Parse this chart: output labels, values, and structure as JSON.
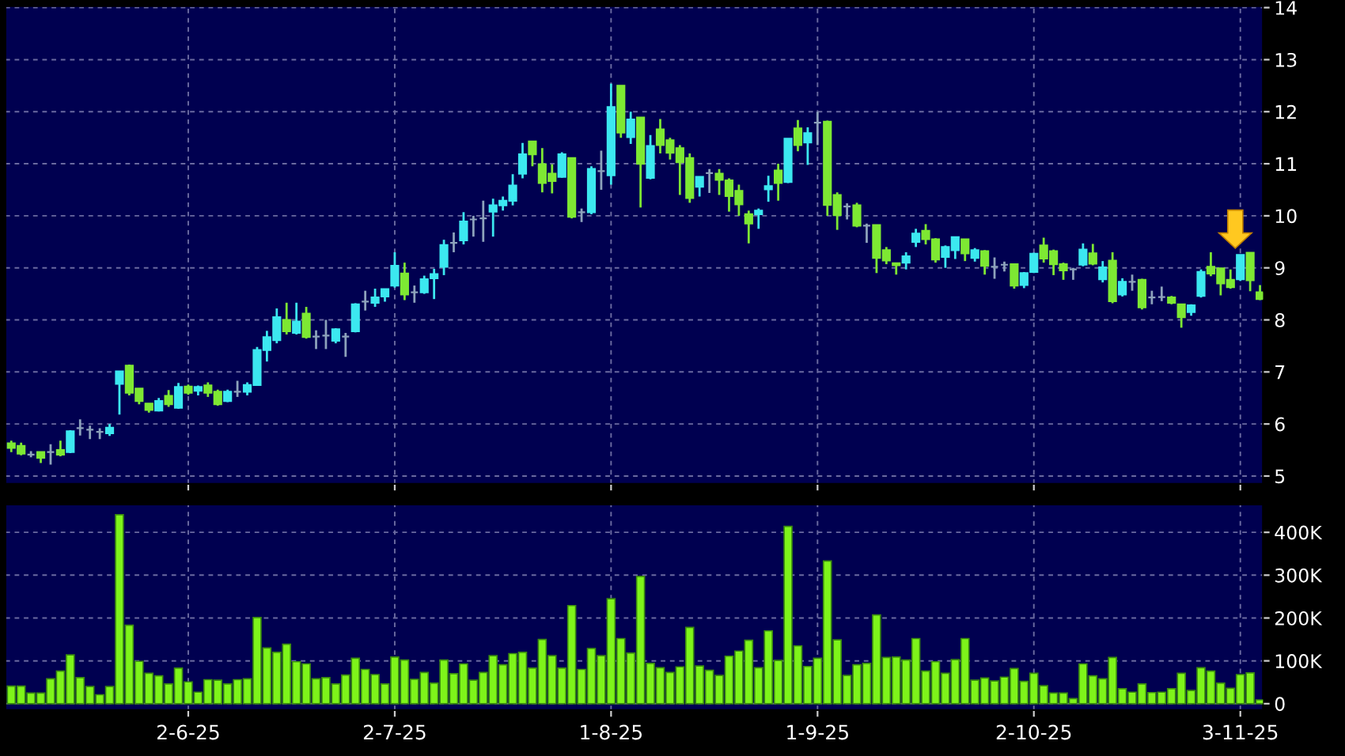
{
  "chart_data": [
    {
      "type": "candlestick",
      "tick_labels": "y",
      "grid": true,
      "categories": [
        null,
        null,
        null,
        null,
        null,
        null,
        null,
        null,
        null,
        null,
        null,
        null,
        null,
        null,
        null,
        null,
        null,
        null,
        null,
        null,
        null,
        null,
        null,
        null,
        null,
        null,
        null,
        null,
        null,
        null,
        null,
        null,
        null,
        null,
        null,
        null,
        null,
        null,
        null,
        null,
        null,
        null,
        null,
        null,
        null,
        null,
        null,
        null,
        null,
        null,
        null,
        null,
        null,
        null,
        null,
        null,
        null,
        null,
        null,
        null,
        null,
        null,
        null,
        null,
        null,
        null,
        null,
        null,
        null,
        null,
        null,
        null,
        null,
        null,
        null,
        null,
        null,
        null,
        null,
        null,
        null,
        null,
        null,
        null,
        null,
        null,
        null,
        null,
        null,
        null,
        null,
        null,
        null,
        null,
        null,
        null,
        null,
        null,
        null,
        null,
        null,
        null,
        null,
        null,
        null,
        null,
        null,
        null,
        null,
        null,
        null,
        null,
        null,
        null,
        null,
        null,
        null,
        null,
        null,
        null,
        null,
        null,
        null,
        null,
        null,
        null,
        null,
        null
      ],
      "ohlc": [
        [
          5.63,
          5.68,
          5.46,
          5.54
        ],
        [
          5.58,
          5.64,
          5.4,
          5.43
        ],
        [
          5.41,
          5.48,
          5.36,
          5.41
        ],
        [
          5.46,
          5.46,
          5.25,
          5.35
        ],
        [
          5.46,
          5.61,
          5.22,
          5.46
        ],
        [
          5.5,
          5.68,
          5.38,
          5.41
        ],
        [
          5.46,
          5.88,
          5.44,
          5.86
        ],
        [
          5.92,
          6.09,
          5.78,
          5.92
        ],
        [
          5.89,
          5.97,
          5.71,
          5.89
        ],
        [
          5.85,
          5.92,
          5.71,
          5.85
        ],
        [
          5.82,
          6.0,
          5.77,
          5.93
        ],
        [
          6.77,
          7.02,
          6.18,
          7.01
        ],
        [
          7.12,
          7.14,
          6.55,
          6.6
        ],
        [
          6.68,
          6.68,
          6.38,
          6.44
        ],
        [
          6.39,
          6.39,
          6.22,
          6.27
        ],
        [
          6.26,
          6.5,
          6.24,
          6.44
        ],
        [
          6.54,
          6.65,
          6.33,
          6.38
        ],
        [
          6.31,
          6.79,
          6.29,
          6.71
        ],
        [
          6.72,
          6.76,
          6.56,
          6.6
        ],
        [
          6.64,
          6.74,
          6.55,
          6.71
        ],
        [
          6.74,
          6.8,
          6.52,
          6.6
        ],
        [
          6.62,
          6.66,
          6.35,
          6.38
        ],
        [
          6.44,
          6.66,
          6.42,
          6.62
        ],
        [
          6.62,
          6.83,
          6.52,
          6.62
        ],
        [
          6.62,
          6.8,
          6.55,
          6.75
        ],
        [
          6.75,
          7.48,
          6.75,
          7.42
        ],
        [
          7.42,
          7.79,
          7.2,
          7.67
        ],
        [
          7.61,
          8.22,
          7.55,
          8.05
        ],
        [
          8.0,
          8.33,
          7.72,
          7.78
        ],
        [
          7.75,
          8.33,
          7.72,
          7.97
        ],
        [
          8.12,
          8.25,
          7.64,
          7.67
        ],
        [
          7.68,
          7.8,
          7.44,
          7.68
        ],
        [
          7.7,
          8.0,
          7.44,
          7.7
        ],
        [
          7.6,
          7.84,
          7.55,
          7.82
        ],
        [
          7.68,
          7.75,
          7.29,
          7.68
        ],
        [
          7.78,
          8.32,
          7.76,
          8.3
        ],
        [
          8.35,
          8.56,
          8.18,
          8.35
        ],
        [
          8.33,
          8.6,
          8.25,
          8.43
        ],
        [
          8.45,
          8.6,
          8.35,
          8.59
        ],
        [
          8.66,
          9.3,
          8.62,
          9.04
        ],
        [
          8.89,
          9.1,
          8.38,
          8.49
        ],
        [
          8.53,
          8.66,
          8.33,
          8.53
        ],
        [
          8.53,
          8.85,
          8.5,
          8.78
        ],
        [
          8.8,
          8.98,
          8.4,
          8.88
        ],
        [
          9.02,
          9.54,
          8.86,
          9.44
        ],
        [
          9.48,
          9.68,
          9.3,
          9.48
        ],
        [
          9.53,
          10.07,
          9.45,
          9.89
        ],
        [
          9.93,
          10.0,
          9.6,
          9.93
        ],
        [
          9.95,
          10.29,
          9.5,
          9.95
        ],
        [
          10.08,
          10.33,
          9.6,
          10.2
        ],
        [
          10.2,
          10.37,
          10.1,
          10.29
        ],
        [
          10.29,
          10.8,
          10.2,
          10.58
        ],
        [
          10.81,
          11.4,
          10.72,
          11.18
        ],
        [
          11.43,
          11.43,
          10.95,
          11.18
        ],
        [
          10.99,
          11.3,
          10.45,
          10.63
        ],
        [
          10.81,
          10.99,
          10.43,
          10.67
        ],
        [
          10.75,
          11.22,
          10.73,
          11.18
        ],
        [
          11.11,
          11.11,
          9.95,
          9.98
        ],
        [
          10.07,
          10.14,
          9.88,
          10.07
        ],
        [
          10.07,
          10.95,
          10.03,
          10.9
        ],
        [
          10.86,
          11.25,
          10.5,
          10.86
        ],
        [
          10.78,
          12.54,
          10.6,
          12.09
        ],
        [
          12.5,
          12.5,
          11.5,
          11.6
        ],
        [
          11.51,
          12.0,
          11.38,
          11.85
        ],
        [
          11.89,
          11.89,
          10.16,
          11.0
        ],
        [
          10.73,
          11.55,
          10.7,
          11.34
        ],
        [
          11.66,
          11.86,
          11.2,
          11.36
        ],
        [
          11.45,
          11.5,
          11.08,
          11.21
        ],
        [
          11.3,
          11.36,
          10.4,
          11.03
        ],
        [
          11.11,
          11.2,
          10.25,
          10.34
        ],
        [
          10.56,
          10.75,
          10.37,
          10.75
        ],
        [
          10.82,
          10.9,
          10.44,
          10.82
        ],
        [
          10.81,
          10.9,
          10.4,
          10.69
        ],
        [
          10.68,
          10.72,
          10.08,
          10.38
        ],
        [
          10.48,
          10.6,
          10.0,
          10.22
        ],
        [
          10.03,
          10.1,
          9.47,
          9.85
        ],
        [
          10.03,
          10.14,
          9.75,
          10.1
        ],
        [
          10.51,
          10.77,
          10.27,
          10.57
        ],
        [
          10.87,
          11.0,
          10.29,
          10.63
        ],
        [
          10.65,
          11.48,
          10.63,
          11.48
        ],
        [
          11.68,
          11.84,
          11.24,
          11.36
        ],
        [
          11.41,
          11.7,
          10.98,
          11.59
        ],
        [
          11.79,
          12.0,
          11.36,
          11.79
        ],
        [
          11.81,
          11.83,
          10.0,
          10.21
        ],
        [
          10.4,
          10.45,
          9.73,
          10.01
        ],
        [
          10.18,
          10.24,
          9.93,
          10.18
        ],
        [
          10.2,
          10.25,
          9.78,
          9.81
        ],
        [
          9.81,
          9.85,
          9.48,
          9.81
        ],
        [
          9.82,
          9.83,
          8.9,
          9.19
        ],
        [
          9.34,
          9.4,
          9.07,
          9.14
        ],
        [
          9.09,
          9.1,
          8.87,
          9.05
        ],
        [
          9.1,
          9.3,
          8.97,
          9.22
        ],
        [
          9.5,
          9.75,
          9.4,
          9.66
        ],
        [
          9.71,
          9.84,
          9.45,
          9.55
        ],
        [
          9.55,
          9.57,
          9.1,
          9.16
        ],
        [
          9.21,
          9.43,
          9.0,
          9.4
        ],
        [
          9.34,
          9.6,
          9.17,
          9.59
        ],
        [
          9.55,
          9.55,
          9.13,
          9.28
        ],
        [
          9.19,
          9.38,
          9.12,
          9.34
        ],
        [
          9.32,
          9.34,
          8.87,
          9.04
        ],
        [
          9.02,
          9.2,
          8.79,
          9.02
        ],
        [
          9.06,
          9.12,
          8.93,
          9.06
        ],
        [
          9.07,
          9.07,
          8.6,
          8.66
        ],
        [
          8.67,
          8.92,
          8.61,
          8.9
        ],
        [
          8.92,
          9.29,
          8.9,
          9.27
        ],
        [
          9.43,
          9.58,
          9.1,
          9.18
        ],
        [
          9.32,
          9.35,
          8.86,
          9.07
        ],
        [
          9.07,
          9.1,
          8.77,
          8.95
        ],
        [
          8.97,
          9.0,
          8.77,
          8.97
        ],
        [
          9.06,
          9.47,
          9.03,
          9.35
        ],
        [
          9.28,
          9.46,
          9.05,
          9.08
        ],
        [
          8.78,
          9.13,
          8.72,
          9.01
        ],
        [
          9.14,
          9.3,
          8.32,
          8.36
        ],
        [
          8.49,
          8.8,
          8.45,
          8.73
        ],
        [
          8.73,
          8.87,
          8.56,
          8.73
        ],
        [
          8.77,
          8.79,
          8.2,
          8.24
        ],
        [
          8.43,
          8.56,
          8.3,
          8.43
        ],
        [
          8.44,
          8.64,
          8.36,
          8.44
        ],
        [
          8.43,
          8.46,
          8.3,
          8.33
        ],
        [
          8.3,
          8.3,
          7.85,
          8.05
        ],
        [
          8.15,
          8.3,
          8.08,
          8.28
        ],
        [
          8.46,
          8.97,
          8.43,
          8.92
        ],
        [
          9.02,
          9.3,
          8.84,
          8.89
        ],
        [
          8.99,
          9.0,
          8.47,
          8.7
        ],
        [
          8.77,
          8.97,
          8.6,
          8.63
        ],
        [
          8.78,
          9.25,
          8.75,
          9.25
        ],
        [
          9.29,
          9.29,
          8.55,
          8.76
        ],
        [
          8.53,
          8.67,
          8.38,
          8.4
        ]
      ],
      "colors": [
        "#7ee833",
        "#7ee833",
        "#8da2bb",
        "#7ee833",
        "#8da2bb",
        "#7ee833",
        "#3ce8f0",
        "#8da2bb",
        "#8da2bb",
        "#8da2bb",
        "#3ce8f0",
        "#3ce8f0",
        "#7ee833",
        "#7ee833",
        "#7ee833",
        "#3ce8f0",
        "#7ee833",
        "#3ce8f0",
        "#7ee833",
        "#3ce8f0",
        "#7ee833",
        "#7ee833",
        "#3ce8f0",
        "#8da2bb",
        "#3ce8f0",
        "#3ce8f0",
        "#3ce8f0",
        "#3ce8f0",
        "#7ee833",
        "#3ce8f0",
        "#7ee833",
        "#8da2bb",
        "#8da2bb",
        "#3ce8f0",
        "#8da2bb",
        "#3ce8f0",
        "#8da2bb",
        "#3ce8f0",
        "#3ce8f0",
        "#3ce8f0",
        "#7ee833",
        "#8da2bb",
        "#3ce8f0",
        "#3ce8f0",
        "#3ce8f0",
        "#8da2bb",
        "#3ce8f0",
        "#8da2bb",
        "#8da2bb",
        "#3ce8f0",
        "#3ce8f0",
        "#3ce8f0",
        "#3ce8f0",
        "#7ee833",
        "#7ee833",
        "#7ee833",
        "#3ce8f0",
        "#7ee833",
        "#8da2bb",
        "#3ce8f0",
        "#8da2bb",
        "#3ce8f0",
        "#7ee833",
        "#3ce8f0",
        "#7ee833",
        "#3ce8f0",
        "#7ee833",
        "#7ee833",
        "#7ee833",
        "#7ee833",
        "#3ce8f0",
        "#8da2bb",
        "#7ee833",
        "#7ee833",
        "#7ee833",
        "#7ee833",
        "#3ce8f0",
        "#3ce8f0",
        "#7ee833",
        "#3ce8f0",
        "#7ee833",
        "#3ce8f0",
        "#8da2bb",
        "#7ee833",
        "#7ee833",
        "#8da2bb",
        "#7ee833",
        "#8da2bb",
        "#7ee833",
        "#7ee833",
        "#7ee833",
        "#3ce8f0",
        "#3ce8f0",
        "#7ee833",
        "#7ee833",
        "#3ce8f0",
        "#3ce8f0",
        "#7ee833",
        "#3ce8f0",
        "#7ee833",
        "#8da2bb",
        "#8da2bb",
        "#7ee833",
        "#3ce8f0",
        "#3ce8f0",
        "#7ee833",
        "#7ee833",
        "#7ee833",
        "#8da2bb",
        "#3ce8f0",
        "#7ee833",
        "#3ce8f0",
        "#7ee833",
        "#3ce8f0",
        "#8da2bb",
        "#7ee833",
        "#8da2bb",
        "#8da2bb",
        "#7ee833",
        "#7ee833",
        "#3ce8f0",
        "#3ce8f0",
        "#7ee833",
        "#7ee833",
        "#7ee833",
        "#3ce8f0",
        "#7ee833",
        "#7ee833"
      ],
      "ylim": [
        4.85,
        14.03
      ],
      "yticks": [
        5,
        6,
        7,
        8,
        9,
        10,
        11,
        12,
        13,
        14
      ]
    },
    {
      "type": "bar",
      "grid": true,
      "color": "#7ef41a",
      "categories": [
        null,
        null,
        null,
        null,
        null,
        null,
        null,
        null,
        null,
        null,
        null,
        null,
        null,
        null,
        null,
        null,
        null,
        null,
        "2-6-25",
        null,
        null,
        null,
        null,
        null,
        null,
        null,
        null,
        null,
        null,
        null,
        null,
        null,
        null,
        null,
        null,
        null,
        null,
        null,
        null,
        "2-7-25",
        null,
        null,
        null,
        null,
        null,
        null,
        null,
        null,
        null,
        null,
        null,
        null,
        null,
        null,
        null,
        null,
        null,
        null,
        null,
        null,
        null,
        "1-8-25",
        null,
        null,
        null,
        null,
        null,
        null,
        null,
        null,
        null,
        null,
        null,
        null,
        null,
        null,
        null,
        null,
        null,
        null,
        null,
        null,
        "1-9-25",
        null,
        null,
        null,
        null,
        null,
        null,
        null,
        null,
        null,
        null,
        null,
        null,
        null,
        null,
        null,
        null,
        null,
        null,
        null,
        null,
        null,
        "2-10-25",
        null,
        null,
        null,
        null,
        null,
        null,
        null,
        null,
        null,
        null,
        null,
        null,
        null,
        null,
        null,
        null,
        null,
        null,
        null,
        null,
        "3-11-25",
        null,
        null
      ],
      "values": [
        41000,
        41000,
        25000,
        25000,
        58000,
        76000,
        114000,
        61000,
        40000,
        21000,
        40000,
        441000,
        183000,
        99000,
        71000,
        65000,
        46000,
        83000,
        51000,
        27000,
        56000,
        55000,
        46000,
        56000,
        58000,
        201000,
        130000,
        120000,
        139000,
        98000,
        93000,
        58000,
        61000,
        46000,
        67000,
        106000,
        80000,
        68000,
        46000,
        109000,
        102000,
        57000,
        73000,
        48000,
        102000,
        70000,
        93000,
        55000,
        73000,
        112000,
        91000,
        117000,
        120000,
        83000,
        150000,
        112000,
        83000,
        229000,
        80000,
        129000,
        112000,
        245000,
        152000,
        118000,
        297000,
        94000,
        84000,
        73000,
        86000,
        178000,
        88000,
        78000,
        66000,
        111000,
        123000,
        148000,
        84000,
        170000,
        101000,
        414000,
        135000,
        87000,
        106000,
        333000,
        149000,
        66000,
        91000,
        94000,
        207000,
        108000,
        109000,
        102000,
        152000,
        76000,
        98000,
        71000,
        103000,
        152000,
        55000,
        60000,
        53000,
        62000,
        82000,
        52000,
        71000,
        42000,
        25000,
        25000,
        12000,
        93000,
        65000,
        58000,
        108000,
        35000,
        27000,
        46000,
        26000,
        27000,
        35000,
        71000,
        31000,
        84000,
        76000,
        48000,
        36000,
        68000,
        72000,
        9000
      ],
      "ylim": [
        -15000,
        465000
      ],
      "yticks": [
        0,
        {
          "value": 100000,
          "label": "100K"
        },
        {
          "value": 200000,
          "label": "200K"
        },
        {
          "value": 300000,
          "label": "300K"
        },
        {
          "value": 400000,
          "label": "400K"
        }
      ]
    }
  ]
}
